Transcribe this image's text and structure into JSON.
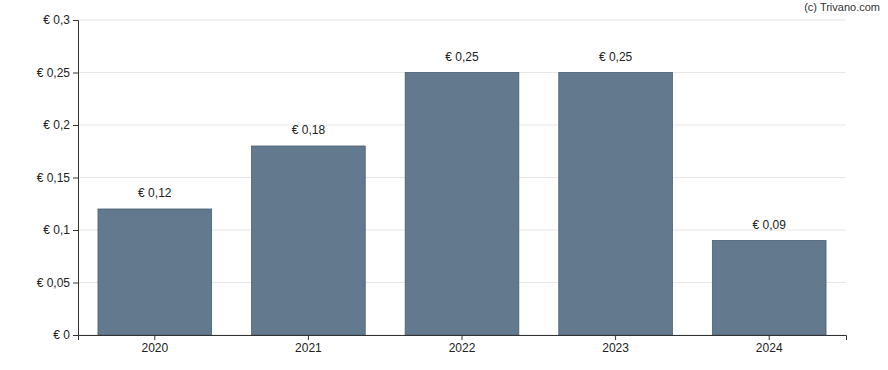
{
  "chart_data": {
    "type": "bar",
    "categories": [
      "2020",
      "2021",
      "2022",
      "2023",
      "2024"
    ],
    "values": [
      0.12,
      0.18,
      0.25,
      0.25,
      0.09
    ],
    "value_labels": [
      "€ 0,12",
      "€ 0,18",
      "€ 0,25",
      "€ 0,25",
      "€ 0,09"
    ],
    "data_labels": true,
    "color": "#63798d",
    "ylim": [
      0,
      0.3
    ],
    "yticks": [
      {
        "value": 0,
        "label": "€ 0"
      },
      {
        "value": 0.05,
        "label": "€ 0,05"
      },
      {
        "value": 0.1,
        "label": "€ 0,1"
      },
      {
        "value": 0.15,
        "label": "€ 0,15"
      },
      {
        "value": 0.2,
        "label": "€ 0,2"
      },
      {
        "value": 0.25,
        "label": "€ 0,25"
      },
      {
        "value": 0.3,
        "label": "€ 0,3"
      }
    ],
    "grid": true,
    "annotations": [
      "(c) Trivano.com"
    ]
  }
}
